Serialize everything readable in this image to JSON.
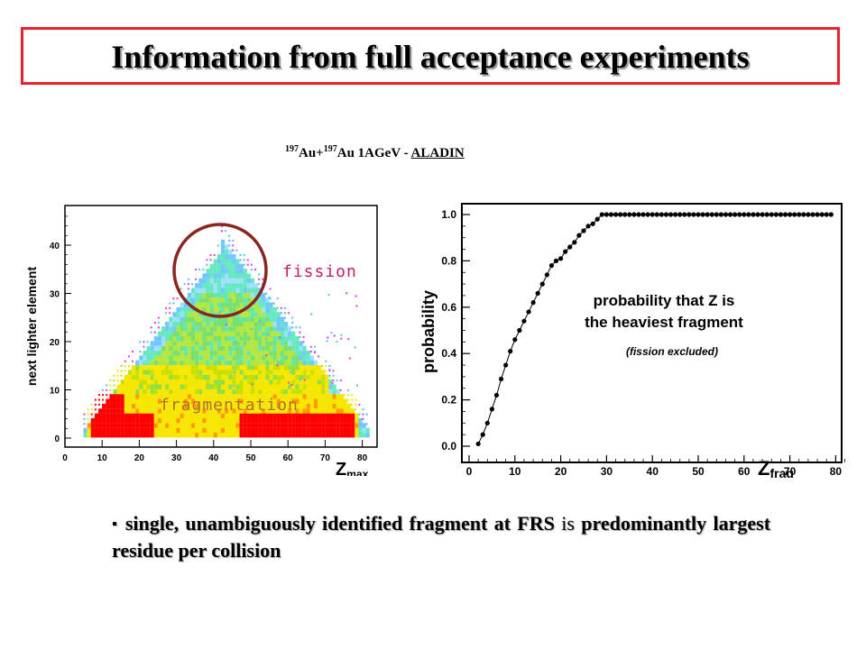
{
  "title": "Information from full acceptance experiments",
  "subtitle": {
    "a1": "197",
    "b1": "Au+",
    "a2": "197",
    "b2": "Au 1AGeV - ",
    "c": "ALADIN"
  },
  "bullet": {
    "marker": "▪",
    "line1": "single, unambiguously identified fragment at FRS",
    "word_is": "is",
    "line2": "predominantly largest residue per collision"
  },
  "colors": {
    "title_border": "#e8242a",
    "fission_circle": "#8b2520",
    "fission_label": "#c0206a",
    "fragmentation_label": "#b07030",
    "frag_red": "#ff0000",
    "frag_yellow": "#f6e600"
  },
  "chart_data": [
    {
      "type": "heatmap",
      "title": "",
      "xlabel": "Z",
      "xlabel_sub": "max",
      "ylabel": "next lighter element",
      "xlim": [
        0,
        85
      ],
      "ylim": [
        -3,
        48
      ],
      "x_ticks": [
        "0",
        "10",
        "20",
        "30",
        "40",
        "50",
        "60",
        "70",
        "80"
      ],
      "y_ticks": [
        "0",
        "10",
        "20",
        "30",
        "40"
      ],
      "annotations": [
        "fission",
        "fragmentation"
      ],
      "grid": false
    },
    {
      "type": "line",
      "title": "",
      "xlabel": "Z",
      "xlabel_sub": "frag",
      "ylabel": "probability",
      "xlim": [
        0,
        83
      ],
      "ylim": [
        0,
        1.05
      ],
      "x_ticks": [
        "0",
        "10",
        "20",
        "30",
        "40",
        "50",
        "60",
        "70",
        "80"
      ],
      "y_ticks": [
        "0.0",
        "0.2",
        "0.4",
        "0.6",
        "0.8",
        "1.0"
      ],
      "annotation_line1": "probability that Z is",
      "annotation_line2": "the heaviest fragment",
      "annotation_line3": "(fission excluded)",
      "x": [
        2,
        3,
        4,
        5,
        6,
        7,
        8,
        9,
        10,
        11,
        12,
        13,
        14,
        15,
        16,
        17,
        18,
        19,
        20,
        21,
        22,
        23,
        24,
        25,
        26,
        27,
        28,
        29,
        30,
        31,
        32,
        33,
        34,
        35,
        36,
        37,
        38,
        39,
        40,
        41,
        42,
        43,
        44,
        45,
        46,
        47,
        48,
        49,
        50,
        51,
        52,
        53,
        54,
        55,
        56,
        57,
        58,
        59,
        60,
        61,
        62,
        63,
        64,
        65,
        66,
        67,
        68,
        69,
        70,
        71,
        72,
        73,
        74,
        75,
        76,
        77,
        78,
        79
      ],
      "y": [
        0.01,
        0.05,
        0.1,
        0.16,
        0.22,
        0.29,
        0.35,
        0.41,
        0.46,
        0.5,
        0.54,
        0.58,
        0.62,
        0.66,
        0.7,
        0.74,
        0.78,
        0.8,
        0.81,
        0.84,
        0.86,
        0.88,
        0.91,
        0.93,
        0.95,
        0.96,
        0.98,
        1.0,
        1.0,
        1.0,
        1.0,
        1.0,
        1.0,
        1.0,
        1.0,
        1.0,
        1.0,
        1.0,
        1.0,
        1.0,
        1.0,
        1.0,
        1.0,
        1.0,
        1.0,
        1.0,
        1.0,
        1.0,
        1.0,
        1.0,
        1.0,
        1.0,
        1.0,
        1.0,
        1.0,
        1.0,
        1.0,
        1.0,
        1.0,
        1.0,
        1.0,
        1.0,
        1.0,
        1.0,
        1.0,
        1.0,
        1.0,
        1.0,
        1.0,
        1.0,
        1.0,
        1.0,
        1.0,
        1.0,
        1.0,
        1.0,
        1.0,
        1.0
      ],
      "grid": false
    }
  ]
}
